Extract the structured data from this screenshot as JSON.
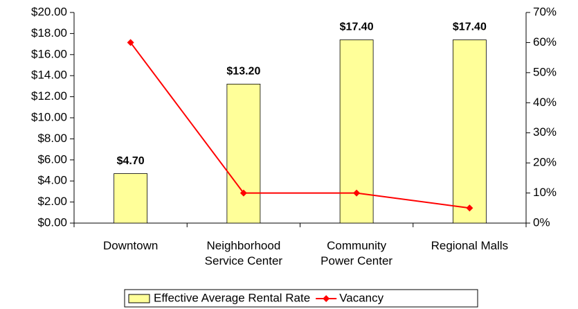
{
  "chart_data": {
    "type": "bar_line",
    "categories": [
      "Downtown",
      "Neighborhood Service Center",
      "Community Power Center",
      "Regional Malls"
    ],
    "series": [
      {
        "name": "Effective Average Rental Rate",
        "type": "bar",
        "color": "#ffff99",
        "values": [
          4.7,
          13.2,
          17.4,
          17.4
        ],
        "value_labels": [
          "$4.70",
          "$13.20",
          "$17.40",
          "$17.40"
        ]
      },
      {
        "name": "Vacancy",
        "type": "line",
        "axis": "y2",
        "color": "#ff0000",
        "values": [
          60,
          10,
          10,
          5
        ]
      }
    ],
    "ylim": [
      0,
      20
    ],
    "yticks": [
      {
        "value": 0,
        "label": "$0.00"
      },
      {
        "value": 2,
        "label": "$2.00"
      },
      {
        "value": 4,
        "label": "$4.00"
      },
      {
        "value": 6,
        "label": "$6.00"
      },
      {
        "value": 8,
        "label": "$8.00"
      },
      {
        "value": 10,
        "label": "$10.00"
      },
      {
        "value": 12,
        "label": "$12.00"
      },
      {
        "value": 14,
        "label": "$14.00"
      },
      {
        "value": 16,
        "label": "$16.00"
      },
      {
        "value": 18,
        "label": "$18.00"
      },
      {
        "value": 20,
        "label": "$20.00"
      }
    ],
    "y2lim": [
      0,
      70
    ],
    "y2ticks": [
      {
        "value": 0,
        "label": "0%"
      },
      {
        "value": 10,
        "label": "10%"
      },
      {
        "value": 20,
        "label": "20%"
      },
      {
        "value": 30,
        "label": "30%"
      },
      {
        "value": 40,
        "label": "40%"
      },
      {
        "value": 50,
        "label": "50%"
      },
      {
        "value": 60,
        "label": "60%"
      },
      {
        "value": 70,
        "label": "70%"
      }
    ],
    "grid": false,
    "legend": "bottom"
  }
}
